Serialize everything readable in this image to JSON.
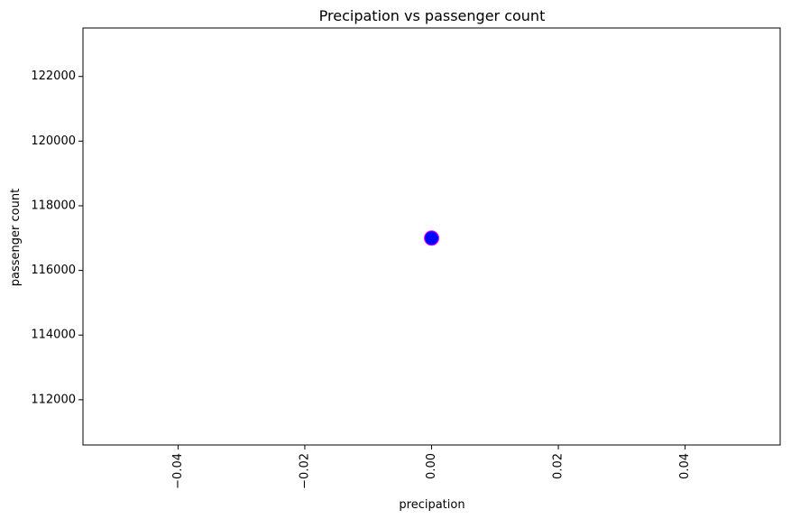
{
  "chart_data": {
    "type": "scatter",
    "title": "Precipation vs passenger count",
    "xlabel": "precipation",
    "ylabel": "passenger count",
    "xlim": [
      -0.055,
      0.055
    ],
    "ylim": [
      110600,
      123500
    ],
    "x_ticks": [
      -0.04,
      -0.02,
      0.0,
      0.02,
      0.04
    ],
    "x_tick_labels": [
      "−0.04",
      "−0.02",
      "0.00",
      "0.02",
      "0.04"
    ],
    "y_ticks": [
      112000,
      114000,
      116000,
      118000,
      120000,
      122000
    ],
    "y_tick_labels": [
      "112000",
      "114000",
      "116000",
      "118000",
      "120000",
      "122000"
    ],
    "x_tick_rotation": "vertical",
    "grid": false,
    "series": [
      {
        "points": [
          {
            "x": 0.0,
            "y": 117000
          }
        ],
        "color": "#0000ff",
        "edgecolor": "#ff00ff"
      }
    ]
  }
}
